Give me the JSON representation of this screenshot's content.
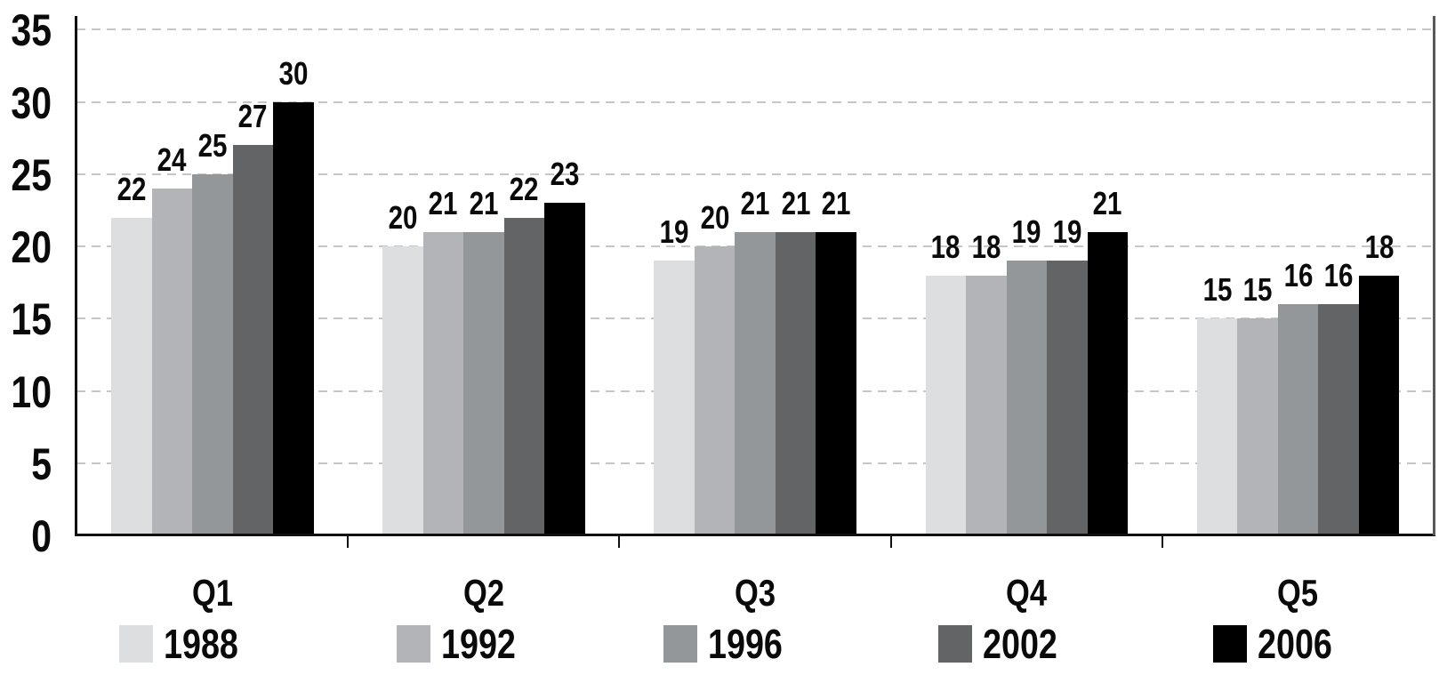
{
  "chart_data": {
    "type": "bar",
    "title": "",
    "categories": [
      "Q1",
      "Q2",
      "Q3",
      "Q4",
      "Q5"
    ],
    "series": [
      {
        "name": "1988",
        "color": "#dcdee0",
        "values": [
          22,
          20,
          19,
          18,
          15
        ]
      },
      {
        "name": "1992",
        "color": "#b2b4b7",
        "values": [
          24,
          21,
          20,
          18,
          15
        ]
      },
      {
        "name": "1996",
        "color": "#94979a",
        "values": [
          25,
          21,
          21,
          19,
          16
        ]
      },
      {
        "name": "2002",
        "color": "#626466",
        "values": [
          27,
          22,
          21,
          19,
          16
        ]
      },
      {
        "name": "2006",
        "color": "#000000",
        "values": [
          30,
          23,
          21,
          21,
          18
        ]
      }
    ],
    "ylim": [
      0,
      35
    ],
    "yticks": [
      0,
      5,
      10,
      15,
      20,
      25,
      30,
      35
    ],
    "grid": "horizontal-dashed",
    "data_labels_visible": true,
    "legend_position": "bottom",
    "style": {
      "background": "#ffffff",
      "axis_color": "#111111",
      "gridline_color": "#c5c6c7",
      "plot_border_color": "#58595b",
      "label_color": "#0a0a0a"
    }
  }
}
